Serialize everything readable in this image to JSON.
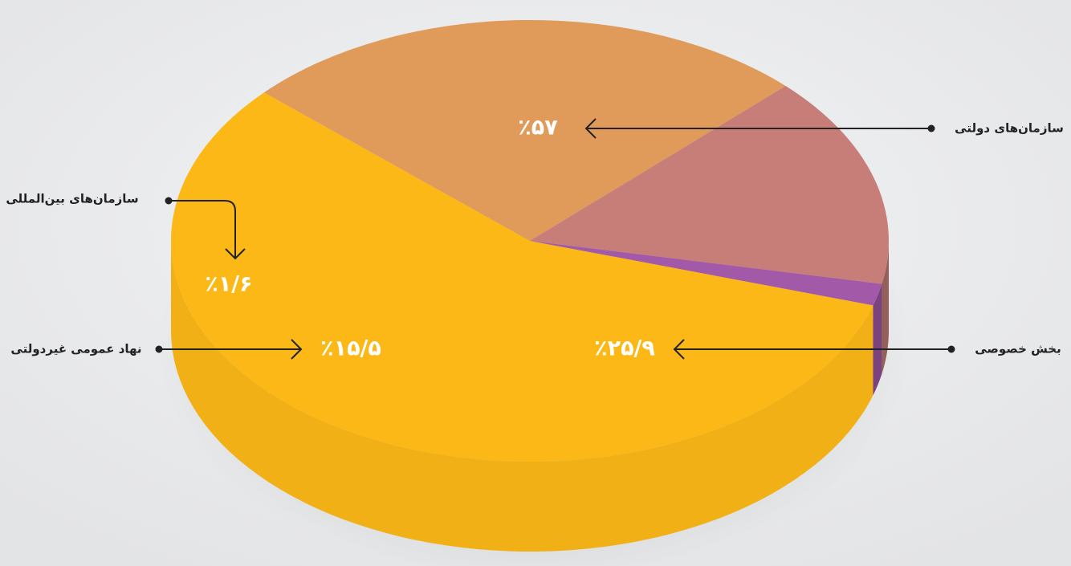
{
  "chart_data": {
    "type": "pie",
    "style": "3d",
    "categories": [
      "سازمان‌های دولتی",
      "بخش خصوصی",
      "نهاد عمومی غیردولتی",
      "سازمان‌های بین‌المللی"
    ],
    "values": [
      57,
      25.9,
      15.5,
      1.6
    ],
    "value_labels": [
      "٪۵۷",
      "٪۲۵/۹",
      "٪۱۵/۵",
      "٪۱/۶"
    ],
    "colors": [
      "#fbb817",
      "#e09a5a",
      "#c77e78",
      "#a259a8"
    ]
  }
}
